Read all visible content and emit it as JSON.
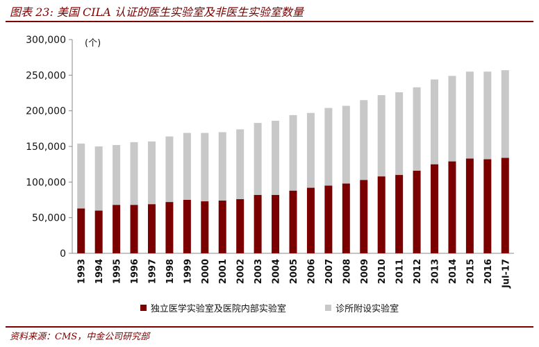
{
  "title": "图表 23: 美国 CILA 认证的医生实验室及非医生实验室数量",
  "source": "资料来源：CMS，中金公司研究部",
  "chart_data": {
    "type": "bar",
    "stacked": true,
    "unit_label": "(个)",
    "categories": [
      "1993",
      "1994",
      "1995",
      "1996",
      "1997",
      "1998",
      "1999",
      "2000",
      "2001",
      "2002",
      "2003",
      "2004",
      "2005",
      "2006",
      "2007",
      "2008",
      "2009",
      "2010",
      "2011",
      "2012",
      "2013",
      "2014",
      "2015",
      "2016",
      "Jul-17"
    ],
    "series": [
      {
        "name": "独立医学实验室及医院内部实验室",
        "color": "#7a0000",
        "values": [
          63000,
          60000,
          68000,
          68000,
          69000,
          72000,
          75000,
          73000,
          74000,
          76000,
          82000,
          82000,
          88000,
          92000,
          95000,
          98000,
          103000,
          108000,
          110000,
          116000,
          125000,
          129000,
          133000,
          132000,
          134000
        ]
      },
      {
        "name": "诊所附设实验室",
        "color": "#c8c8c8",
        "values": [
          91000,
          90000,
          84000,
          88000,
          88000,
          92000,
          94000,
          96000,
          96000,
          98000,
          101000,
          104000,
          106000,
          105000,
          109000,
          109000,
          112000,
          114000,
          116000,
          117000,
          119000,
          120000,
          122000,
          123000,
          123000
        ]
      }
    ],
    "yticks": [
      "0",
      "50,000",
      "100,000",
      "150,000",
      "200,000",
      "250,000",
      "300,000"
    ],
    "ylim": [
      0,
      300000
    ],
    "grid": false,
    "legend_position": "bottom"
  }
}
